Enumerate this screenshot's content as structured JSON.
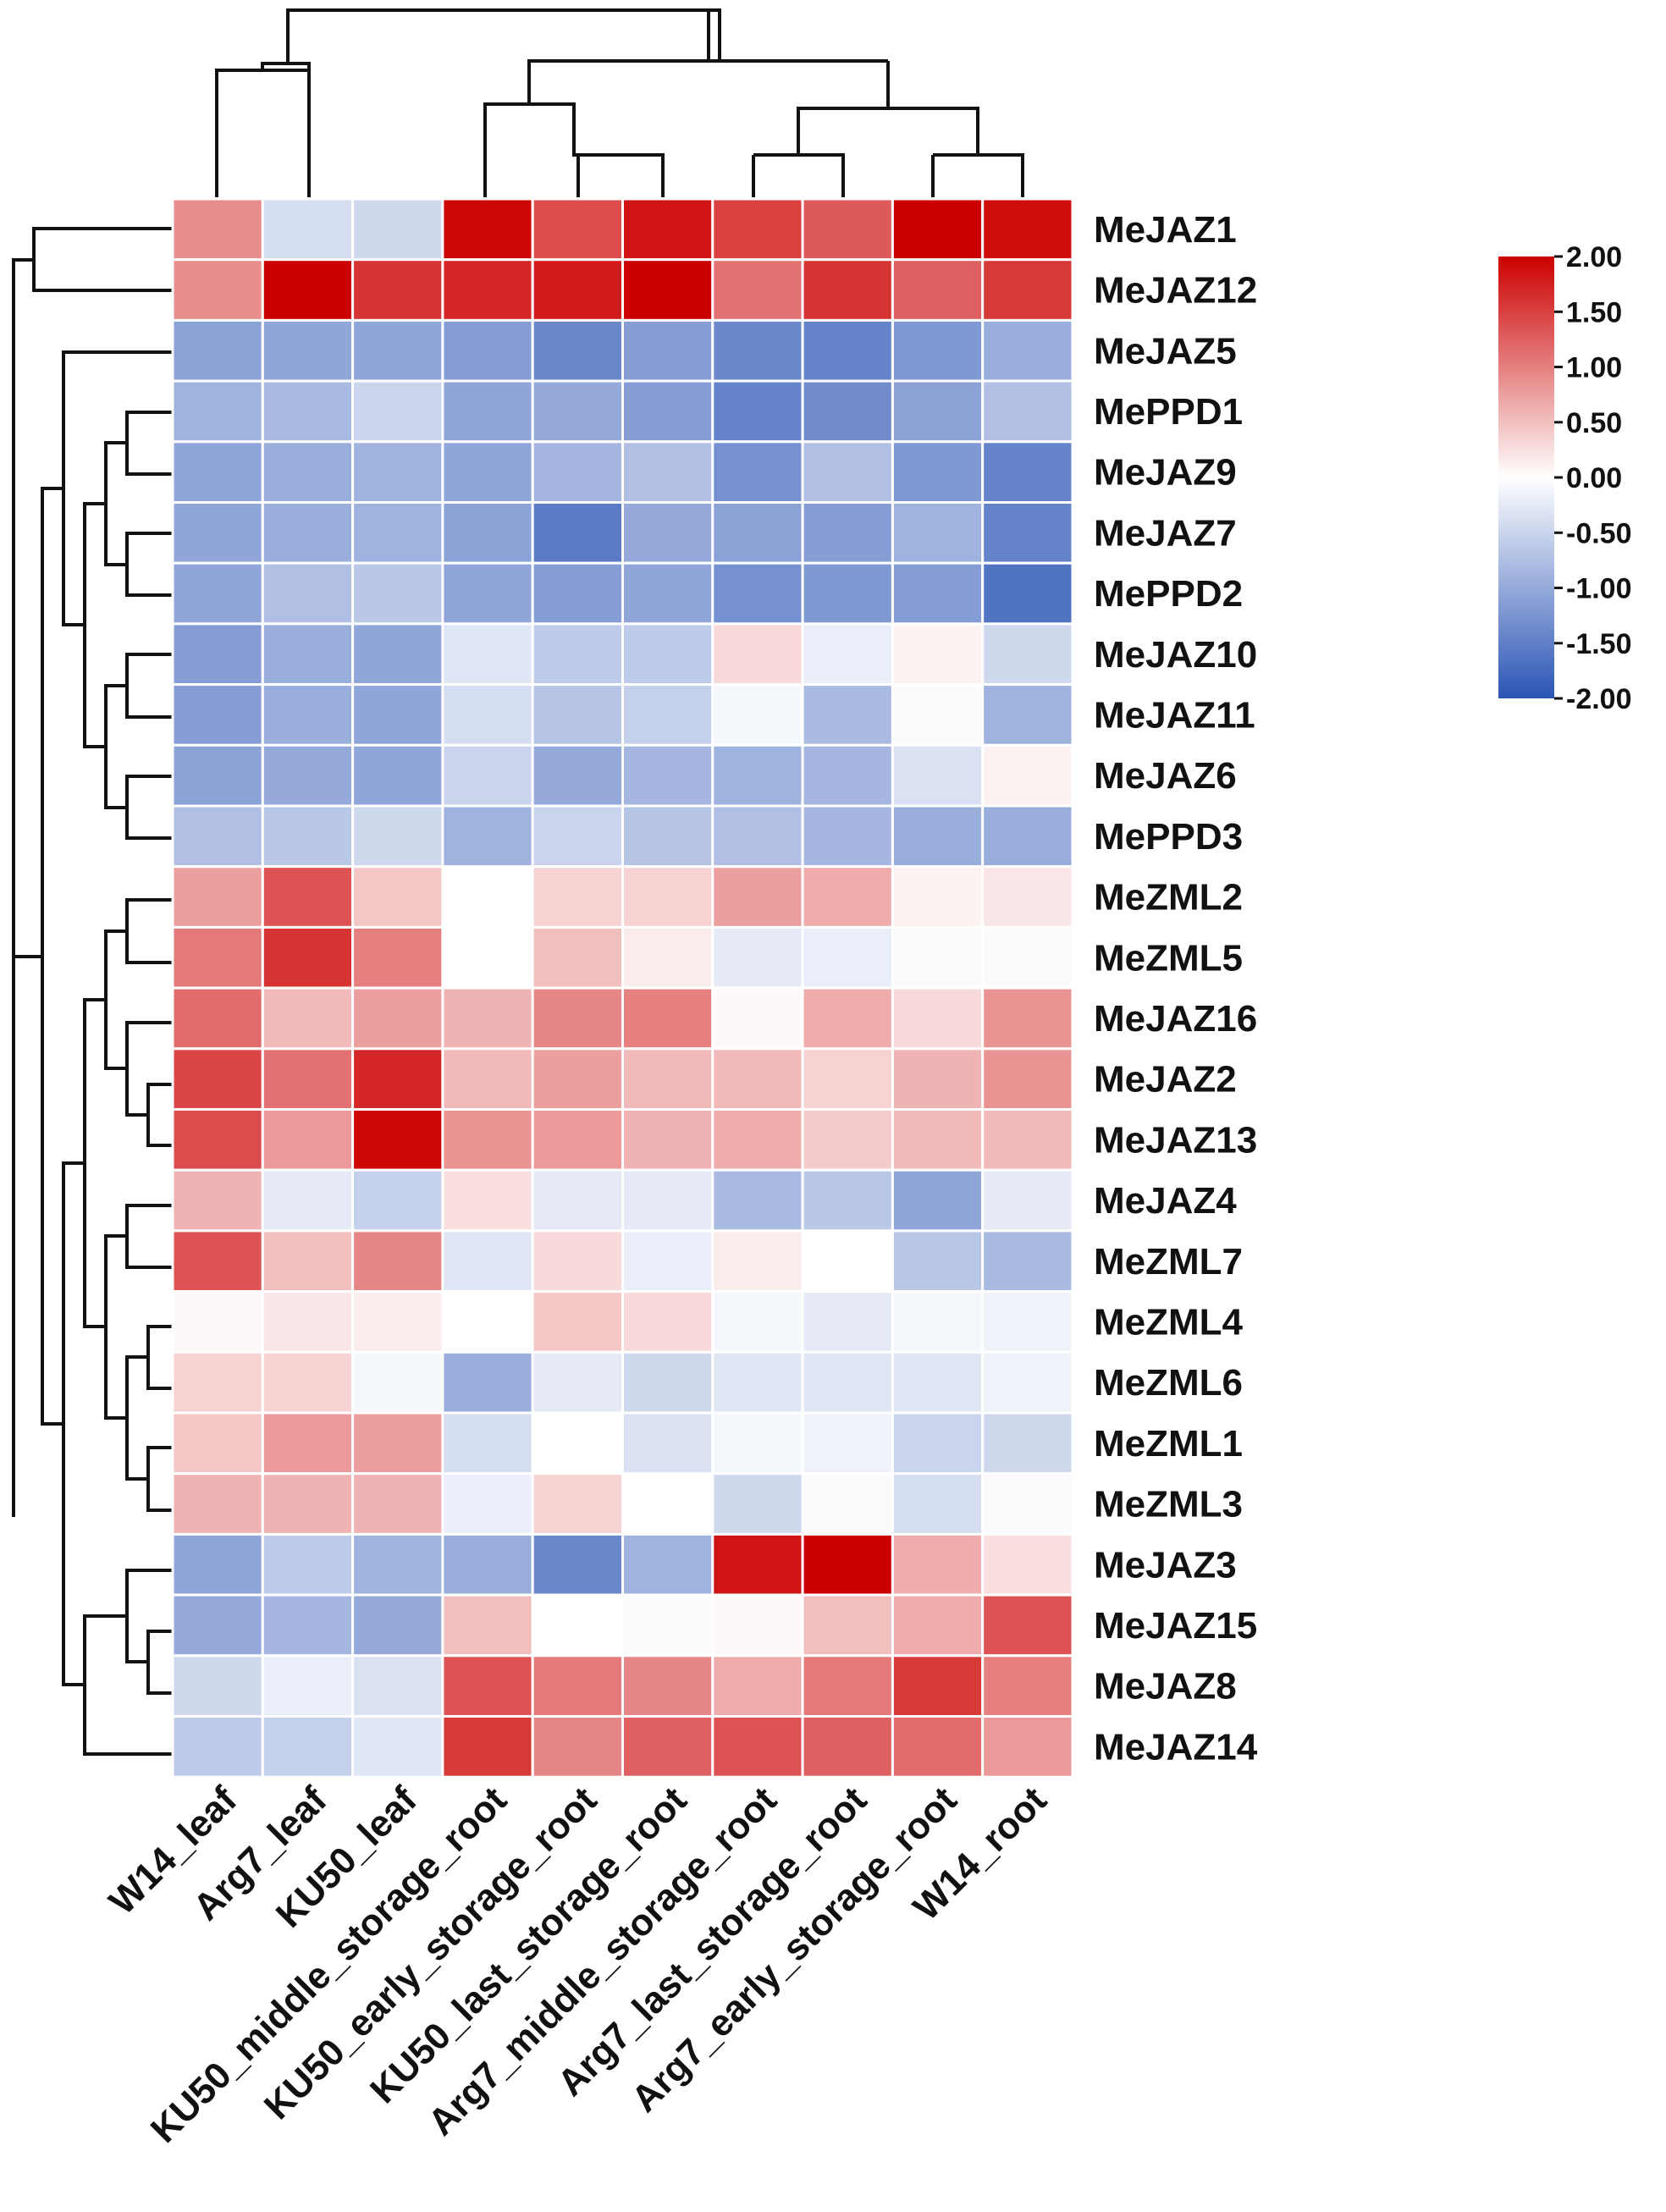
{
  "chart_data": {
    "type": "heatmap",
    "title": "",
    "columns": [
      "W14_leaf",
      "Arg7_leaf",
      "KU50_leaf",
      "KU50_middle_storage_root",
      "KU50_early_storage_root",
      "KU50_last_storage_root",
      "Arg7_middle_storage_root",
      "Arg7_last_storage_root",
      "Arg7_early_storage_root",
      "W14_root"
    ],
    "rows": [
      "MeJAZ1",
      "MeJAZ12",
      "MeJAZ5",
      "MePPD1",
      "MeJAZ9",
      "MeJAZ7",
      "MePPD2",
      "MeJAZ10",
      "MeJAZ11",
      "MeJAZ6",
      "MePPD3",
      "MeZML2",
      "MeZML5",
      "MeJAZ16",
      "MeJAZ2",
      "MeJAZ13",
      "MeJAZ4",
      "MeZML7",
      "MeZML4",
      "MeZML6",
      "MeZML1",
      "MeZML3",
      "MeJAZ3",
      "MeJAZ15",
      "MeJAZ8",
      "MeJAZ14"
    ],
    "values": [
      [
        0.9,
        -0.4,
        -0.45,
        1.95,
        1.4,
        1.85,
        1.5,
        1.3,
        2.0,
        1.9
      ],
      [
        0.9,
        2.0,
        1.6,
        1.7,
        1.8,
        2.0,
        1.1,
        1.6,
        1.25,
        1.55
      ],
      [
        -1.1,
        -1.05,
        -1.05,
        -1.15,
        -1.4,
        -1.15,
        -1.4,
        -1.45,
        -1.2,
        -0.95
      ],
      [
        -0.9,
        -0.8,
        -0.5,
        -1.05,
        -1.0,
        -1.15,
        -1.45,
        -1.35,
        -1.1,
        -0.75
      ],
      [
        -1.05,
        -0.95,
        -0.9,
        -1.05,
        -0.85,
        -0.75,
        -1.3,
        -0.75,
        -1.2,
        -1.45
      ],
      [
        -1.05,
        -0.95,
        -0.9,
        -1.1,
        -1.55,
        -1.0,
        -1.1,
        -1.15,
        -0.9,
        -1.45
      ],
      [
        -1.05,
        -0.75,
        -0.65,
        -1.05,
        -1.15,
        -1.05,
        -1.3,
        -1.2,
        -1.15,
        -1.65
      ],
      [
        -1.15,
        -0.95,
        -1.05,
        -0.3,
        -0.6,
        -0.6,
        0.3,
        -0.2,
        0.1,
        -0.45
      ],
      [
        -1.15,
        -0.95,
        -1.05,
        -0.4,
        -0.7,
        -0.55,
        -0.1,
        -0.8,
        -0.05,
        -0.9
      ],
      [
        -1.1,
        -1.0,
        -1.05,
        -0.5,
        -1.0,
        -0.85,
        -0.9,
        -0.85,
        -0.35,
        0.1
      ],
      [
        -0.75,
        -0.65,
        -0.45,
        -0.9,
        -0.5,
        -0.7,
        -0.75,
        -0.85,
        -0.95,
        -0.95
      ],
      [
        0.75,
        1.35,
        0.45,
        0.0,
        0.35,
        0.35,
        0.75,
        0.65,
        0.1,
        0.2
      ],
      [
        1.05,
        1.6,
        1.0,
        0.0,
        0.5,
        0.15,
        -0.25,
        -0.2,
        -0.05,
        -0.05
      ],
      [
        1.15,
        0.55,
        0.75,
        0.6,
        0.95,
        1.0,
        0.05,
        0.65,
        0.3,
        0.85
      ],
      [
        1.45,
        1.1,
        1.7,
        0.55,
        0.75,
        0.55,
        0.55,
        0.35,
        0.6,
        0.85
      ],
      [
        1.4,
        0.8,
        1.95,
        0.85,
        0.8,
        0.6,
        0.65,
        0.4,
        0.55,
        0.55
      ],
      [
        0.6,
        -0.25,
        -0.55,
        0.25,
        -0.25,
        -0.25,
        -0.8,
        -0.65,
        -1.05,
        -0.25
      ],
      [
        1.35,
        0.5,
        0.95,
        -0.3,
        0.3,
        -0.2,
        0.15,
        0.0,
        -0.65,
        -0.8
      ],
      [
        0.05,
        0.2,
        0.15,
        0.0,
        0.45,
        0.3,
        -0.1,
        -0.25,
        -0.1,
        -0.15
      ],
      [
        0.35,
        0.35,
        -0.1,
        -0.95,
        -0.25,
        -0.45,
        -0.3,
        -0.3,
        -0.3,
        -0.15
      ],
      [
        0.45,
        0.8,
        0.75,
        -0.4,
        0.0,
        -0.35,
        -0.1,
        -0.15,
        -0.5,
        -0.45
      ],
      [
        0.6,
        0.6,
        0.6,
        -0.2,
        0.35,
        0.0,
        -0.45,
        -0.05,
        -0.4,
        -0.05
      ],
      [
        -1.05,
        -0.6,
        -0.9,
        -0.95,
        -1.4,
        -0.9,
        1.85,
        2.0,
        0.65,
        0.25
      ],
      [
        -1.0,
        -0.85,
        -1.0,
        0.5,
        0.0,
        -0.05,
        0.05,
        0.5,
        0.65,
        1.35
      ],
      [
        -0.45,
        -0.2,
        -0.35,
        1.35,
        1.05,
        0.95,
        0.65,
        1.05,
        1.55,
        1.0
      ],
      [
        -0.6,
        -0.55,
        -0.3,
        1.55,
        0.95,
        1.25,
        1.35,
        1.25,
        1.15,
        0.8
      ]
    ],
    "colorbar": {
      "range": [
        -2.0,
        2.0
      ],
      "ticks": [
        "2.00",
        "1.50",
        "1.00",
        "0.50",
        "0.00",
        "-0.50",
        "-1.00",
        "-1.50",
        "-2.00"
      ],
      "low_color": "#2b55b5",
      "mid_color": "#ffffff",
      "high_color": "#cc0000",
      "placement": "right"
    },
    "row_dendrogram": "left",
    "column_dendrogram": "top",
    "grid": false
  }
}
